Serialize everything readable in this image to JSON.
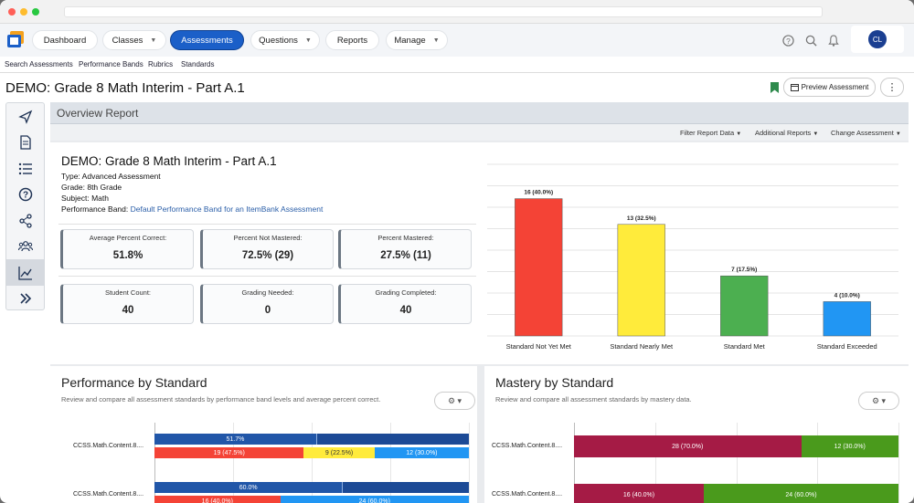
{
  "nav": {
    "items": [
      {
        "label": "Dashboard",
        "has_menu": false,
        "active": false
      },
      {
        "label": "Classes",
        "has_menu": true,
        "active": false
      },
      {
        "label": "Assessments",
        "has_menu": false,
        "active": true
      },
      {
        "label": "Questions",
        "has_menu": true,
        "active": false
      },
      {
        "label": "Reports",
        "has_menu": false,
        "active": false
      },
      {
        "label": "Manage",
        "has_menu": true,
        "active": false
      }
    ],
    "user_initials": "CL"
  },
  "subnav": [
    "Search Assessments",
    "Performance Bands",
    "Rubrics",
    "Standards"
  ],
  "page": {
    "title": "DEMO: Grade 8 Math Interim - Part A.1",
    "preview_button": "Preview Assessment",
    "more_button": "⋮"
  },
  "sidebar": {
    "icons": [
      "navigation-icon",
      "document-icon",
      "list-icon",
      "help-icon",
      "share-icon",
      "users-icon",
      "chart-icon",
      "expand-icon"
    ],
    "active_index": 6
  },
  "overview": {
    "title": "Overview Report",
    "filters": [
      "Filter Report Data",
      "Additional Reports",
      "Change Assessment"
    ]
  },
  "assessment": {
    "title": "DEMO: Grade 8 Math Interim - Part A.1",
    "type": "Type: Advanced Assessment",
    "grade": "Grade: 8th Grade",
    "subject": "Subject: Math",
    "band_label": "Performance Band:",
    "band_value": "Default Performance Band for an ItemBank Assessment"
  },
  "stats": [
    {
      "label": "Average Percent Correct:",
      "value": "51.8%"
    },
    {
      "label": "Percent Not Mastered:",
      "value": "72.5% (29)"
    },
    {
      "label": "Percent Mastered:",
      "value": "27.5% (11)"
    },
    {
      "label": "Student Count:",
      "value": "40"
    },
    {
      "label": "Grading Needed:",
      "value": "0"
    },
    {
      "label": "Grading Completed:",
      "value": "40"
    }
  ],
  "chart_data": {
    "type": "bar",
    "categories": [
      "Standard Not Yet Met",
      "Standard Nearly Met",
      "Standard Met",
      "Standard Exceeded"
    ],
    "values": [
      16,
      13,
      7,
      4
    ],
    "data_labels": [
      "16 (40.0%)",
      "13 (32.5%)",
      "7 (17.5%)",
      "4 (10.0%)"
    ],
    "colors": [
      "#f44336",
      "#ffeb3b",
      "#4caf50",
      "#2196f3"
    ],
    "ylim": [
      0,
      20
    ],
    "grid": true
  },
  "perf_by_standard": {
    "title": "Performance by Standard",
    "subtitle": "Review and compare all assessment standards by performance band levels and average percent correct.",
    "gear": "⚙ ▾",
    "rows": [
      {
        "label": "CCSS.Math.Content.8....",
        "avg": 51.7,
        "avg_label": "51.7%",
        "bands": [
          {
            "pct": 47.5,
            "label": "19 (47.5%)",
            "color": "#f44336"
          },
          {
            "pct": 22.5,
            "label": "9 (22.5%)",
            "color": "#ffeb3b"
          },
          {
            "pct": 30.0,
            "label": "12 (30.0%)",
            "color": "#2196f3"
          }
        ]
      },
      {
        "label": "CCSS.Math.Content.8....",
        "avg": 60.0,
        "avg_label": "60.0%",
        "bands": [
          {
            "pct": 40.0,
            "label": "16 (40.0%)",
            "color": "#f44336"
          },
          {
            "pct": 0,
            "label": "",
            "color": "#ffeb3b"
          },
          {
            "pct": 60.0,
            "label": "24 (60.0%)",
            "color": "#2196f3"
          }
        ]
      }
    ]
  },
  "mastery_by_standard": {
    "title": "Mastery by Standard",
    "subtitle": "Review and compare all assessment standards by mastery data.",
    "gear": "⚙ ▾",
    "rows": [
      {
        "label": "CCSS.Math.Content.8....",
        "bands": [
          {
            "pct": 70.0,
            "label": "28 (70.0%)",
            "color": "#a51b45"
          },
          {
            "pct": 30.0,
            "label": "12 (30.0%)",
            "color": "#4a9a1c"
          }
        ]
      },
      {
        "label": "CCSS.Math.Content.8....",
        "bands": [
          {
            "pct": 40.0,
            "label": "16 (40.0%)",
            "color": "#a51b45"
          },
          {
            "pct": 60.0,
            "label": "24 (60.0%)",
            "color": "#4a9a1c"
          }
        ]
      }
    ]
  }
}
